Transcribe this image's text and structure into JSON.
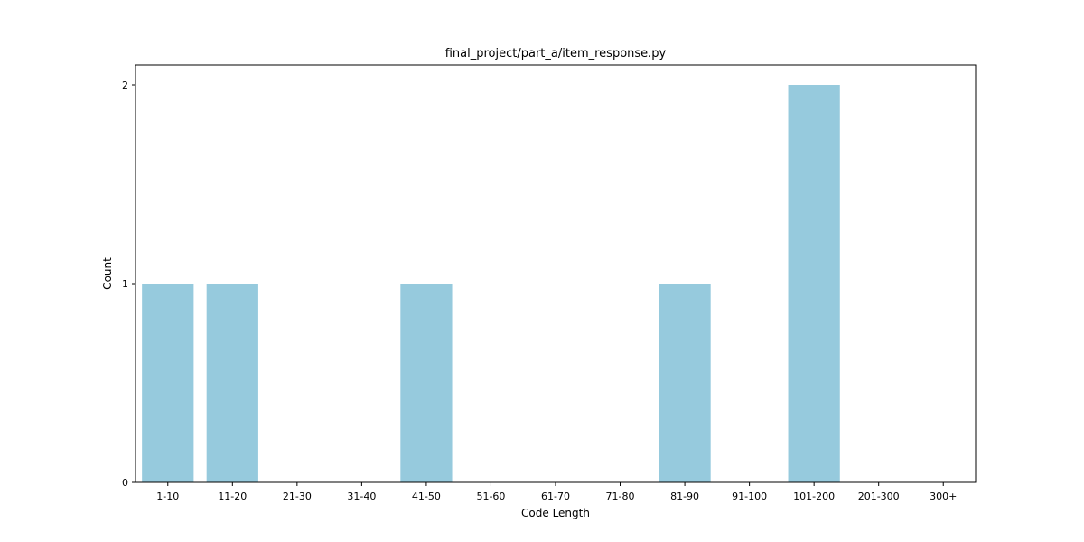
{
  "chart_data": {
    "type": "bar",
    "title": "final_project/part_a/item_response.py",
    "xlabel": "Code Length",
    "ylabel": "Count",
    "categories": [
      "1-10",
      "11-20",
      "21-30",
      "31-40",
      "41-50",
      "51-60",
      "61-70",
      "71-80",
      "81-90",
      "91-100",
      "101-200",
      "201-300",
      "300+"
    ],
    "values": [
      1,
      1,
      0,
      0,
      1,
      0,
      0,
      0,
      1,
      0,
      2,
      0,
      0
    ],
    "ylim": [
      0,
      2.1
    ],
    "yticks": [
      "0",
      "1",
      "2"
    ],
    "grid": false,
    "legend": "none",
    "bar_color": "#96cadd",
    "axis_color": "#000000"
  }
}
